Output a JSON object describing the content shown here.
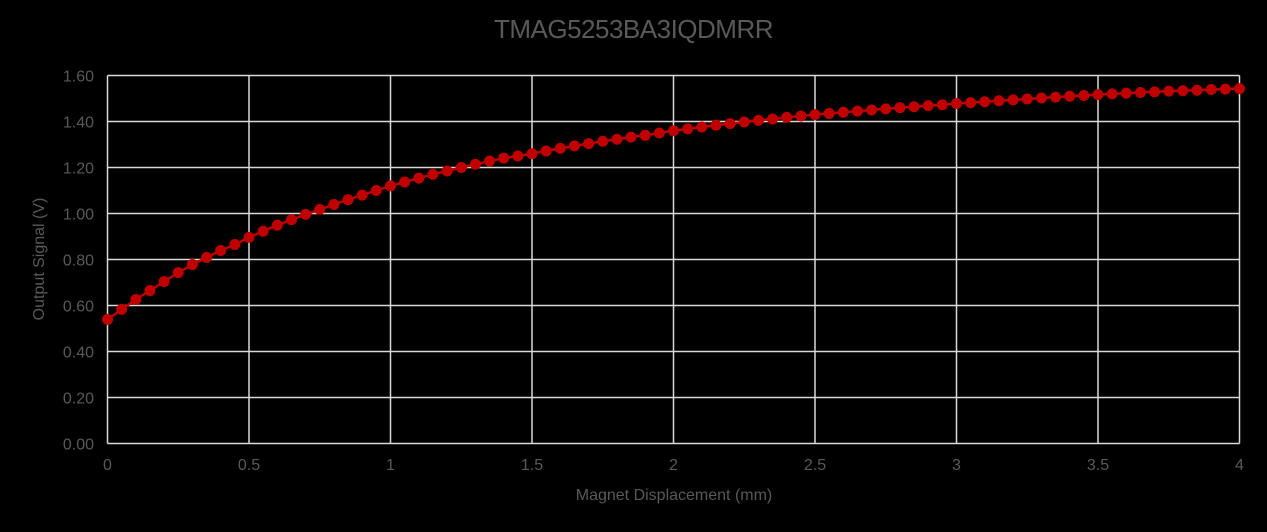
{
  "chart_data": {
    "type": "line",
    "title": "TMAG5253BA3IQDMRR",
    "xlabel": "Magnet Displacement (mm)",
    "ylabel": "Output Signal (V)",
    "xlim": [
      0,
      4
    ],
    "ylim": [
      0,
      1.6
    ],
    "x_ticks": [
      "0",
      "0.5",
      "1",
      "1.5",
      "2",
      "2.5",
      "3",
      "3.5",
      "4"
    ],
    "y_ticks": [
      "0.00",
      "0.20",
      "0.40",
      "0.60",
      "0.80",
      "1.00",
      "1.20",
      "1.40",
      "1.60"
    ],
    "grid": true,
    "legend": null,
    "series": [
      {
        "name": "Output Signal",
        "color": "#C00000",
        "marker": "circle",
        "x": [
          0,
          0.05,
          0.1,
          0.15,
          0.2,
          0.25,
          0.3,
          0.35,
          0.4,
          0.45,
          0.5,
          0.55,
          0.6,
          0.65,
          0.7,
          0.75,
          0.8,
          0.85,
          0.9,
          0.95,
          1,
          1.05,
          1.1,
          1.15,
          1.2,
          1.25,
          1.3,
          1.35,
          1.4,
          1.45,
          1.5,
          1.55,
          1.6,
          1.65,
          1.7,
          1.75,
          1.8,
          1.85,
          1.9,
          1.95,
          2,
          2.05,
          2.1,
          2.15,
          2.2,
          2.25,
          2.3,
          2.35,
          2.4,
          2.45,
          2.5,
          2.55,
          2.6,
          2.65,
          2.7,
          2.75,
          2.8,
          2.85,
          2.9,
          2.95,
          3,
          3.05,
          3.1,
          3.15,
          3.2,
          3.25,
          3.3,
          3.35,
          3.4,
          3.45,
          3.5,
          3.55,
          3.6,
          3.65,
          3.7,
          3.75,
          3.8,
          3.85,
          3.9,
          3.95,
          4
        ],
        "values": [
          0.539,
          0.583,
          0.626,
          0.665,
          0.704,
          0.743,
          0.778,
          0.809,
          0.839,
          0.865,
          0.896,
          0.923,
          0.949,
          0.973,
          0.996,
          1.018,
          1.039,
          1.06,
          1.08,
          1.1,
          1.12,
          1.137,
          1.154,
          1.17,
          1.185,
          1.2,
          1.214,
          1.228,
          1.241,
          1.25,
          1.26,
          1.272,
          1.283,
          1.294,
          1.304,
          1.314,
          1.323,
          1.332,
          1.34,
          1.35,
          1.36,
          1.368,
          1.376,
          1.384,
          1.391,
          1.398,
          1.405,
          1.411,
          1.418,
          1.424,
          1.43,
          1.435,
          1.44,
          1.445,
          1.45,
          1.455,
          1.46,
          1.464,
          1.469,
          1.473,
          1.478,
          1.482,
          1.486,
          1.49,
          1.494,
          1.498,
          1.502,
          1.506,
          1.51,
          1.513,
          1.517,
          1.52,
          1.523,
          1.526,
          1.529,
          1.532,
          1.534,
          1.536,
          1.539,
          1.541,
          1.543
        ]
      }
    ]
  },
  "colors": {
    "background": "#000000",
    "grid": "#D9D9D9",
    "text": "#595959",
    "series": "#C00000"
  }
}
